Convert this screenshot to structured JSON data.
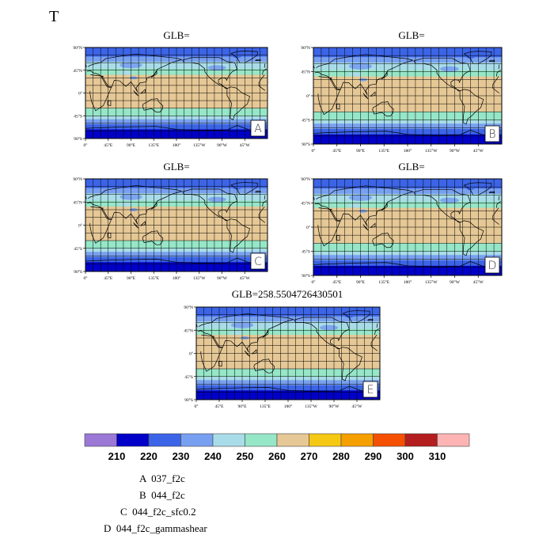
{
  "page": {
    "letter": "T"
  },
  "panels": [
    {
      "tag": "A",
      "title": "GLB="
    },
    {
      "tag": "B",
      "title": "GLB="
    },
    {
      "tag": "C",
      "title": "GLB="
    },
    {
      "tag": "D",
      "title": "GLB="
    },
    {
      "tag": "E",
      "title": "GLB=258.5504726430501"
    }
  ],
  "map": {
    "lon_ticks": [
      "0°",
      "45°E",
      "90°E",
      "135°E",
      "180°",
      "135°W",
      "90°W",
      "45°W"
    ],
    "lat_ticks": [
      "90°N",
      "45°N",
      "0°",
      "45°S",
      "90°S"
    ],
    "band_colors": {
      "b210": "#0000c8",
      "b220": "#3c64e6",
      "b230": "#78a0f0",
      "b240": "#a8dce8",
      "b250": "#96e6c8",
      "b260": "#e6c896",
      "coast": "#000000"
    }
  },
  "colorbar": {
    "colors": [
      "#9b77d6",
      "#0000c8",
      "#3c64e6",
      "#78a0f0",
      "#a8dce8",
      "#96e6c8",
      "#e6c896",
      "#f5c814",
      "#f5a000",
      "#f55000",
      "#b41e1e",
      "#ffb4b4"
    ],
    "labels": [
      "210",
      "220",
      "230",
      "240",
      "250",
      "260",
      "270",
      "280",
      "290",
      "300",
      "310"
    ]
  },
  "legend": [
    {
      "tag": "A",
      "name": "037_f2c"
    },
    {
      "tag": "B",
      "name": "044_f2c"
    },
    {
      "tag": "C",
      "name": "044_f2c_sfc0.2"
    },
    {
      "tag": "D",
      "name": "044_f2c_gammashear"
    }
  ]
}
